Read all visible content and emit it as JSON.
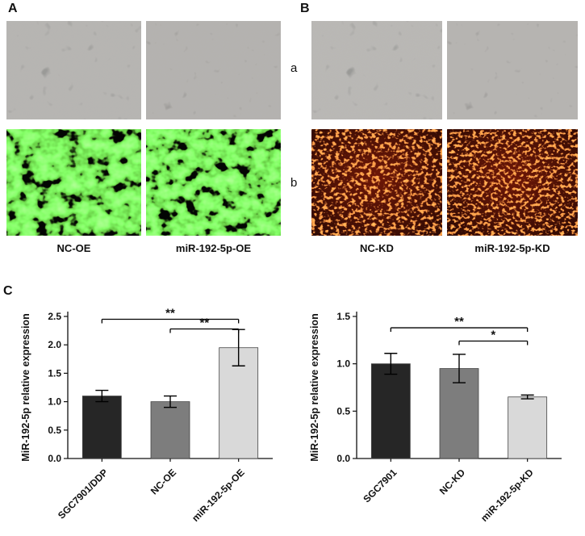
{
  "panels": {
    "a": {
      "label": "A",
      "captions": [
        "NC-OE",
        "miR-192-5p-OE"
      ]
    },
    "b": {
      "label": "B",
      "row_labels": [
        "a",
        "b"
      ],
      "captions": [
        "NC-KD",
        "miR-192-5p-KD"
      ]
    },
    "c": {
      "label": "C"
    }
  },
  "chart_data": [
    {
      "type": "bar",
      "title": "",
      "xlabel": "",
      "ylabel": "MiR-192-5p relative expression",
      "categories": [
        "SGC7901/DDP",
        "NC-OE",
        "miR-192-5p-OE"
      ],
      "values": [
        1.1,
        1.0,
        1.95
      ],
      "errors": [
        0.1,
        0.1,
        0.32
      ],
      "bar_colors": [
        "#262626",
        "#7d7d7d",
        "#d9d9d9"
      ],
      "ylim": [
        0,
        2.5
      ],
      "yticks": [
        0,
        0.5,
        1.0,
        1.5,
        2.0,
        2.5
      ],
      "ytick_labels": [
        "0.0",
        "0.5",
        "1.0",
        "1.5",
        "2.0",
        "2.5"
      ],
      "grid": false,
      "legend": false,
      "significance": [
        {
          "from": 0,
          "to": 2,
          "y": 2.45,
          "label": "**"
        },
        {
          "from": 1,
          "to": 2,
          "y": 2.28,
          "label": "**"
        }
      ]
    },
    {
      "type": "bar",
      "title": "",
      "xlabel": "",
      "ylabel": "MiR-192-5p relative expression",
      "categories": [
        "SGC7901",
        "NC-KD",
        "miR-192-5p-KD"
      ],
      "values": [
        1.0,
        0.95,
        0.65
      ],
      "errors": [
        0.11,
        0.15,
        0.02
      ],
      "bar_colors": [
        "#262626",
        "#7d7d7d",
        "#d9d9d9"
      ],
      "ylim": [
        0,
        1.5
      ],
      "yticks": [
        0,
        0.5,
        1.0,
        1.5
      ],
      "ytick_labels": [
        "0.0",
        "0.5",
        "1.0",
        "1.5"
      ],
      "grid": false,
      "legend": false,
      "significance": [
        {
          "from": 0,
          "to": 2,
          "y": 1.38,
          "label": "**"
        },
        {
          "from": 1,
          "to": 2,
          "y": 1.24,
          "label": "*"
        }
      ]
    }
  ]
}
